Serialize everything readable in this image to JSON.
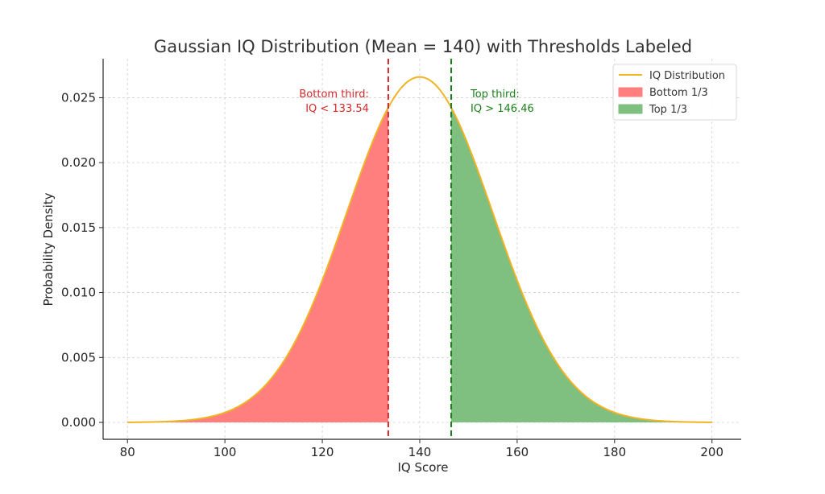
{
  "chart_data": {
    "type": "area",
    "title": "Gaussian IQ Distribution (Mean = 140) with Thresholds Labeled",
    "xlabel": "IQ Score",
    "ylabel": "Probability Density",
    "xlim": [
      75,
      206
    ],
    "ylim": [
      -0.0013,
      0.028
    ],
    "x_ticks": [
      80,
      100,
      120,
      140,
      160,
      180,
      200
    ],
    "x_tick_labels": [
      "80",
      "100",
      "120",
      "140",
      "160",
      "180",
      "200"
    ],
    "y_ticks": [
      0.0,
      0.005,
      0.01,
      0.015,
      0.02,
      0.025
    ],
    "y_tick_labels": [
      "0.000",
      "0.005",
      "0.010",
      "0.015",
      "0.020",
      "0.025"
    ],
    "grid": true,
    "distribution": {
      "mean": 140,
      "std": 15,
      "x_range": [
        80,
        200
      ]
    },
    "series": [
      {
        "name": "IQ Distribution",
        "kind": "line",
        "color": "#f0b323"
      },
      {
        "name": "Bottom 1/3",
        "kind": "fill",
        "from": 80,
        "to": 133.54,
        "color": "#ff7f7f"
      },
      {
        "name": "Top 1/3",
        "kind": "fill",
        "from": 146.46,
        "to": 200,
        "color": "#7fbf7f"
      }
    ],
    "thresholds": [
      {
        "x": 133.54,
        "color": "#d62728",
        "label_line1": "Bottom third:",
        "label_line2": "IQ < 133.54"
      },
      {
        "x": 146.46,
        "color": "#1a7f1a",
        "label_line1": "Top third:",
        "label_line2": "IQ > 146.46"
      }
    ],
    "legend": {
      "position": "top-right",
      "entries": [
        "IQ Distribution",
        "Bottom 1/3",
        "Top 1/3"
      ]
    }
  }
}
